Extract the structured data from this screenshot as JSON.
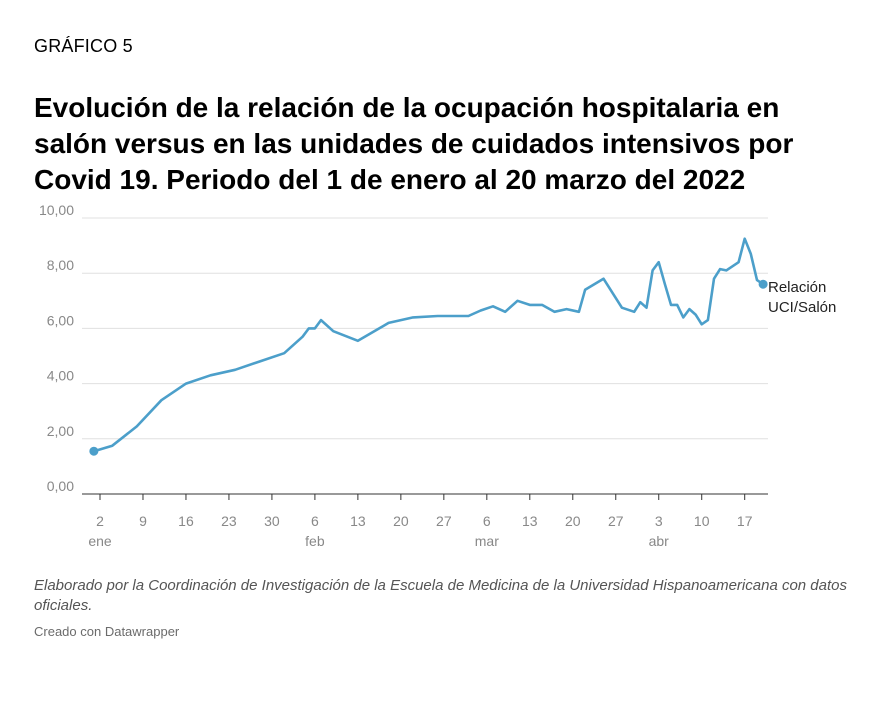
{
  "kicker": "GRÁFICO 5",
  "title": "Evolución de la relación de la ocupación hospitalaria en salón versus en las unidades de cuidados intensivos por Covid 19. Periodo del 1 de enero al 20 marzo del 2022",
  "note": "Elaborado por la Coordinación de Investigación de la Escuela de Medicina de la Universidad Hispanoamericana con datos oficiales.",
  "credit": "Creado con Datawrapper",
  "colors": {
    "line": "#4c9fca",
    "grid": "#e0e0e0",
    "axis_text": "#888888"
  },
  "chart_data": {
    "type": "line",
    "series": [
      {
        "name": "Relación UCI/Salón",
        "x": [
          "2022-01-01",
          "2022-01-04",
          "2022-01-08",
          "2022-01-12",
          "2022-01-16",
          "2022-01-20",
          "2022-01-24",
          "2022-01-28",
          "2022-02-01",
          "2022-02-04",
          "2022-02-05",
          "2022-02-06",
          "2022-02-07",
          "2022-02-09",
          "2022-02-13",
          "2022-02-18",
          "2022-02-22",
          "2022-02-26",
          "2022-03-02",
          "2022-03-03",
          "2022-03-05",
          "2022-03-07",
          "2022-03-08",
          "2022-03-09",
          "2022-03-11",
          "2022-03-13",
          "2022-03-15",
          "2022-03-17",
          "2022-03-19",
          "2022-03-21",
          "2022-03-22",
          "2022-03-25",
          "2022-03-28",
          "2022-03-30",
          "2022-03-31",
          "2022-04-01",
          "2022-04-02",
          "2022-04-03",
          "2022-04-04",
          "2022-04-05",
          "2022-04-06",
          "2022-04-07",
          "2022-04-08",
          "2022-04-09",
          "2022-04-10",
          "2022-04-11",
          "2022-04-12",
          "2022-04-13",
          "2022-04-14",
          "2022-04-16",
          "2022-04-17",
          "2022-04-18",
          "2022-04-19",
          "2022-04-20"
        ],
        "y": [
          1.55,
          1.75,
          2.45,
          3.4,
          4.0,
          4.3,
          4.5,
          4.8,
          5.1,
          5.7,
          6.0,
          6.0,
          6.3,
          5.9,
          5.55,
          6.2,
          6.4,
          6.45,
          6.45,
          6.45,
          6.65,
          6.8,
          6.7,
          6.6,
          7.0,
          6.85,
          6.85,
          6.6,
          6.7,
          6.6,
          7.4,
          7.8,
          6.75,
          6.6,
          6.95,
          6.75,
          8.1,
          8.4,
          7.6,
          6.85,
          6.85,
          6.4,
          6.7,
          6.5,
          6.15,
          6.3,
          7.8,
          8.15,
          8.1,
          8.4,
          9.25,
          8.7,
          7.75,
          7.6
        ]
      }
    ],
    "ylim": [
      0,
      10
    ],
    "y_ticks": [
      "0,00",
      "2,00",
      "4,00",
      "6,00",
      "8,00",
      "10,00"
    ],
    "x_ticks": [
      {
        "date": "2022-01-02",
        "label": "2",
        "month": "ene"
      },
      {
        "date": "2022-01-09",
        "label": "9"
      },
      {
        "date": "2022-01-16",
        "label": "16"
      },
      {
        "date": "2022-01-23",
        "label": "23"
      },
      {
        "date": "2022-01-30",
        "label": "30"
      },
      {
        "date": "2022-02-06",
        "label": "6",
        "month": "feb"
      },
      {
        "date": "2022-02-13",
        "label": "13"
      },
      {
        "date": "2022-02-20",
        "label": "20"
      },
      {
        "date": "2022-02-27",
        "label": "27"
      },
      {
        "date": "2022-03-06",
        "label": "6",
        "month": "mar"
      },
      {
        "date": "2022-03-13",
        "label": "13"
      },
      {
        "date": "2022-03-20",
        "label": "20"
      },
      {
        "date": "2022-03-27",
        "label": "27"
      },
      {
        "date": "2022-04-03",
        "label": "3",
        "month": "abr"
      },
      {
        "date": "2022-04-10",
        "label": "10"
      },
      {
        "date": "2022-04-17",
        "label": "17"
      }
    ],
    "series_label": [
      "Relación",
      "UCI/Salón"
    ],
    "grid": true,
    "legend": "end-of-line label"
  }
}
